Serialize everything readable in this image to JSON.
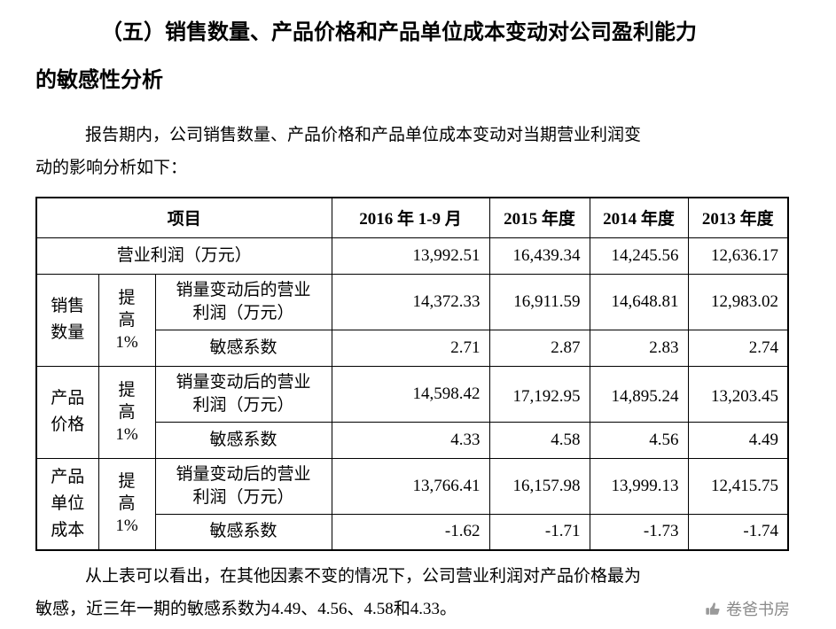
{
  "page": {
    "heading": {
      "lines": [
        "（五）销售数量、产品价格和产品单位成本变动对公司盈利能力",
        "的敏感性分析"
      ]
    },
    "intro": {
      "lines": [
        "报告期内，公司销售数量、产品价格和产品单位成本变动对当期营业利润变",
        "动的影响分析如下："
      ]
    },
    "conclusion": {
      "lines": [
        "从上表可以看出，在其他因素不变的情况下，公司营业利润对产品价格最为",
        "敏感，近三年一期的敏感系数为4.49、4.56、4.58和4.33。"
      ]
    },
    "watermark": {
      "label": "卷爸书房"
    }
  },
  "table": {
    "header": {
      "project": "项目",
      "periods": [
        "2016 年 1-9 月",
        "2015 年度",
        "2014 年度",
        "2013 年度"
      ]
    },
    "operating_profit": {
      "label": "营业利润（万元）",
      "values": [
        "13,992.51",
        "16,439.34",
        "14,245.56",
        "12,636.17"
      ]
    },
    "groups": [
      {
        "name_lines": [
          "销售",
          "数量"
        ],
        "change_lines": [
          "提",
          "高",
          "1%"
        ],
        "profit_label_lines": [
          "销量变动后的营业",
          "利润（万元）"
        ],
        "profit_values": [
          "14,372.33",
          "16,911.59",
          "14,648.81",
          "12,983.02"
        ],
        "sensitivity_label": "敏感系数",
        "sensitivity_values": [
          "2.71",
          "2.87",
          "2.83",
          "2.74"
        ]
      },
      {
        "name_lines": [
          "产品",
          "价格"
        ],
        "change_lines": [
          "提",
          "高",
          "1%"
        ],
        "profit_label_lines": [
          "销量变动后的营业",
          "利润（万元）"
        ],
        "profit_values": [
          "14,598.42",
          "17,192.95",
          "14,895.24",
          "13,203.45"
        ],
        "sensitivity_label": "敏感系数",
        "sensitivity_values": [
          "4.33",
          "4.58",
          "4.56",
          "4.49"
        ]
      },
      {
        "name_lines": [
          "产品",
          "单位",
          "成本"
        ],
        "change_lines": [
          "提",
          "高",
          "1%"
        ],
        "profit_label_lines": [
          "销量变动后的营业",
          "利润（万元）"
        ],
        "profit_values": [
          "13,766.41",
          "16,157.98",
          "13,999.13",
          "12,415.75"
        ],
        "sensitivity_label": "敏感系数",
        "sensitivity_values": [
          "-1.62",
          "-1.71",
          "-1.73",
          "-1.74"
        ]
      }
    ]
  }
}
